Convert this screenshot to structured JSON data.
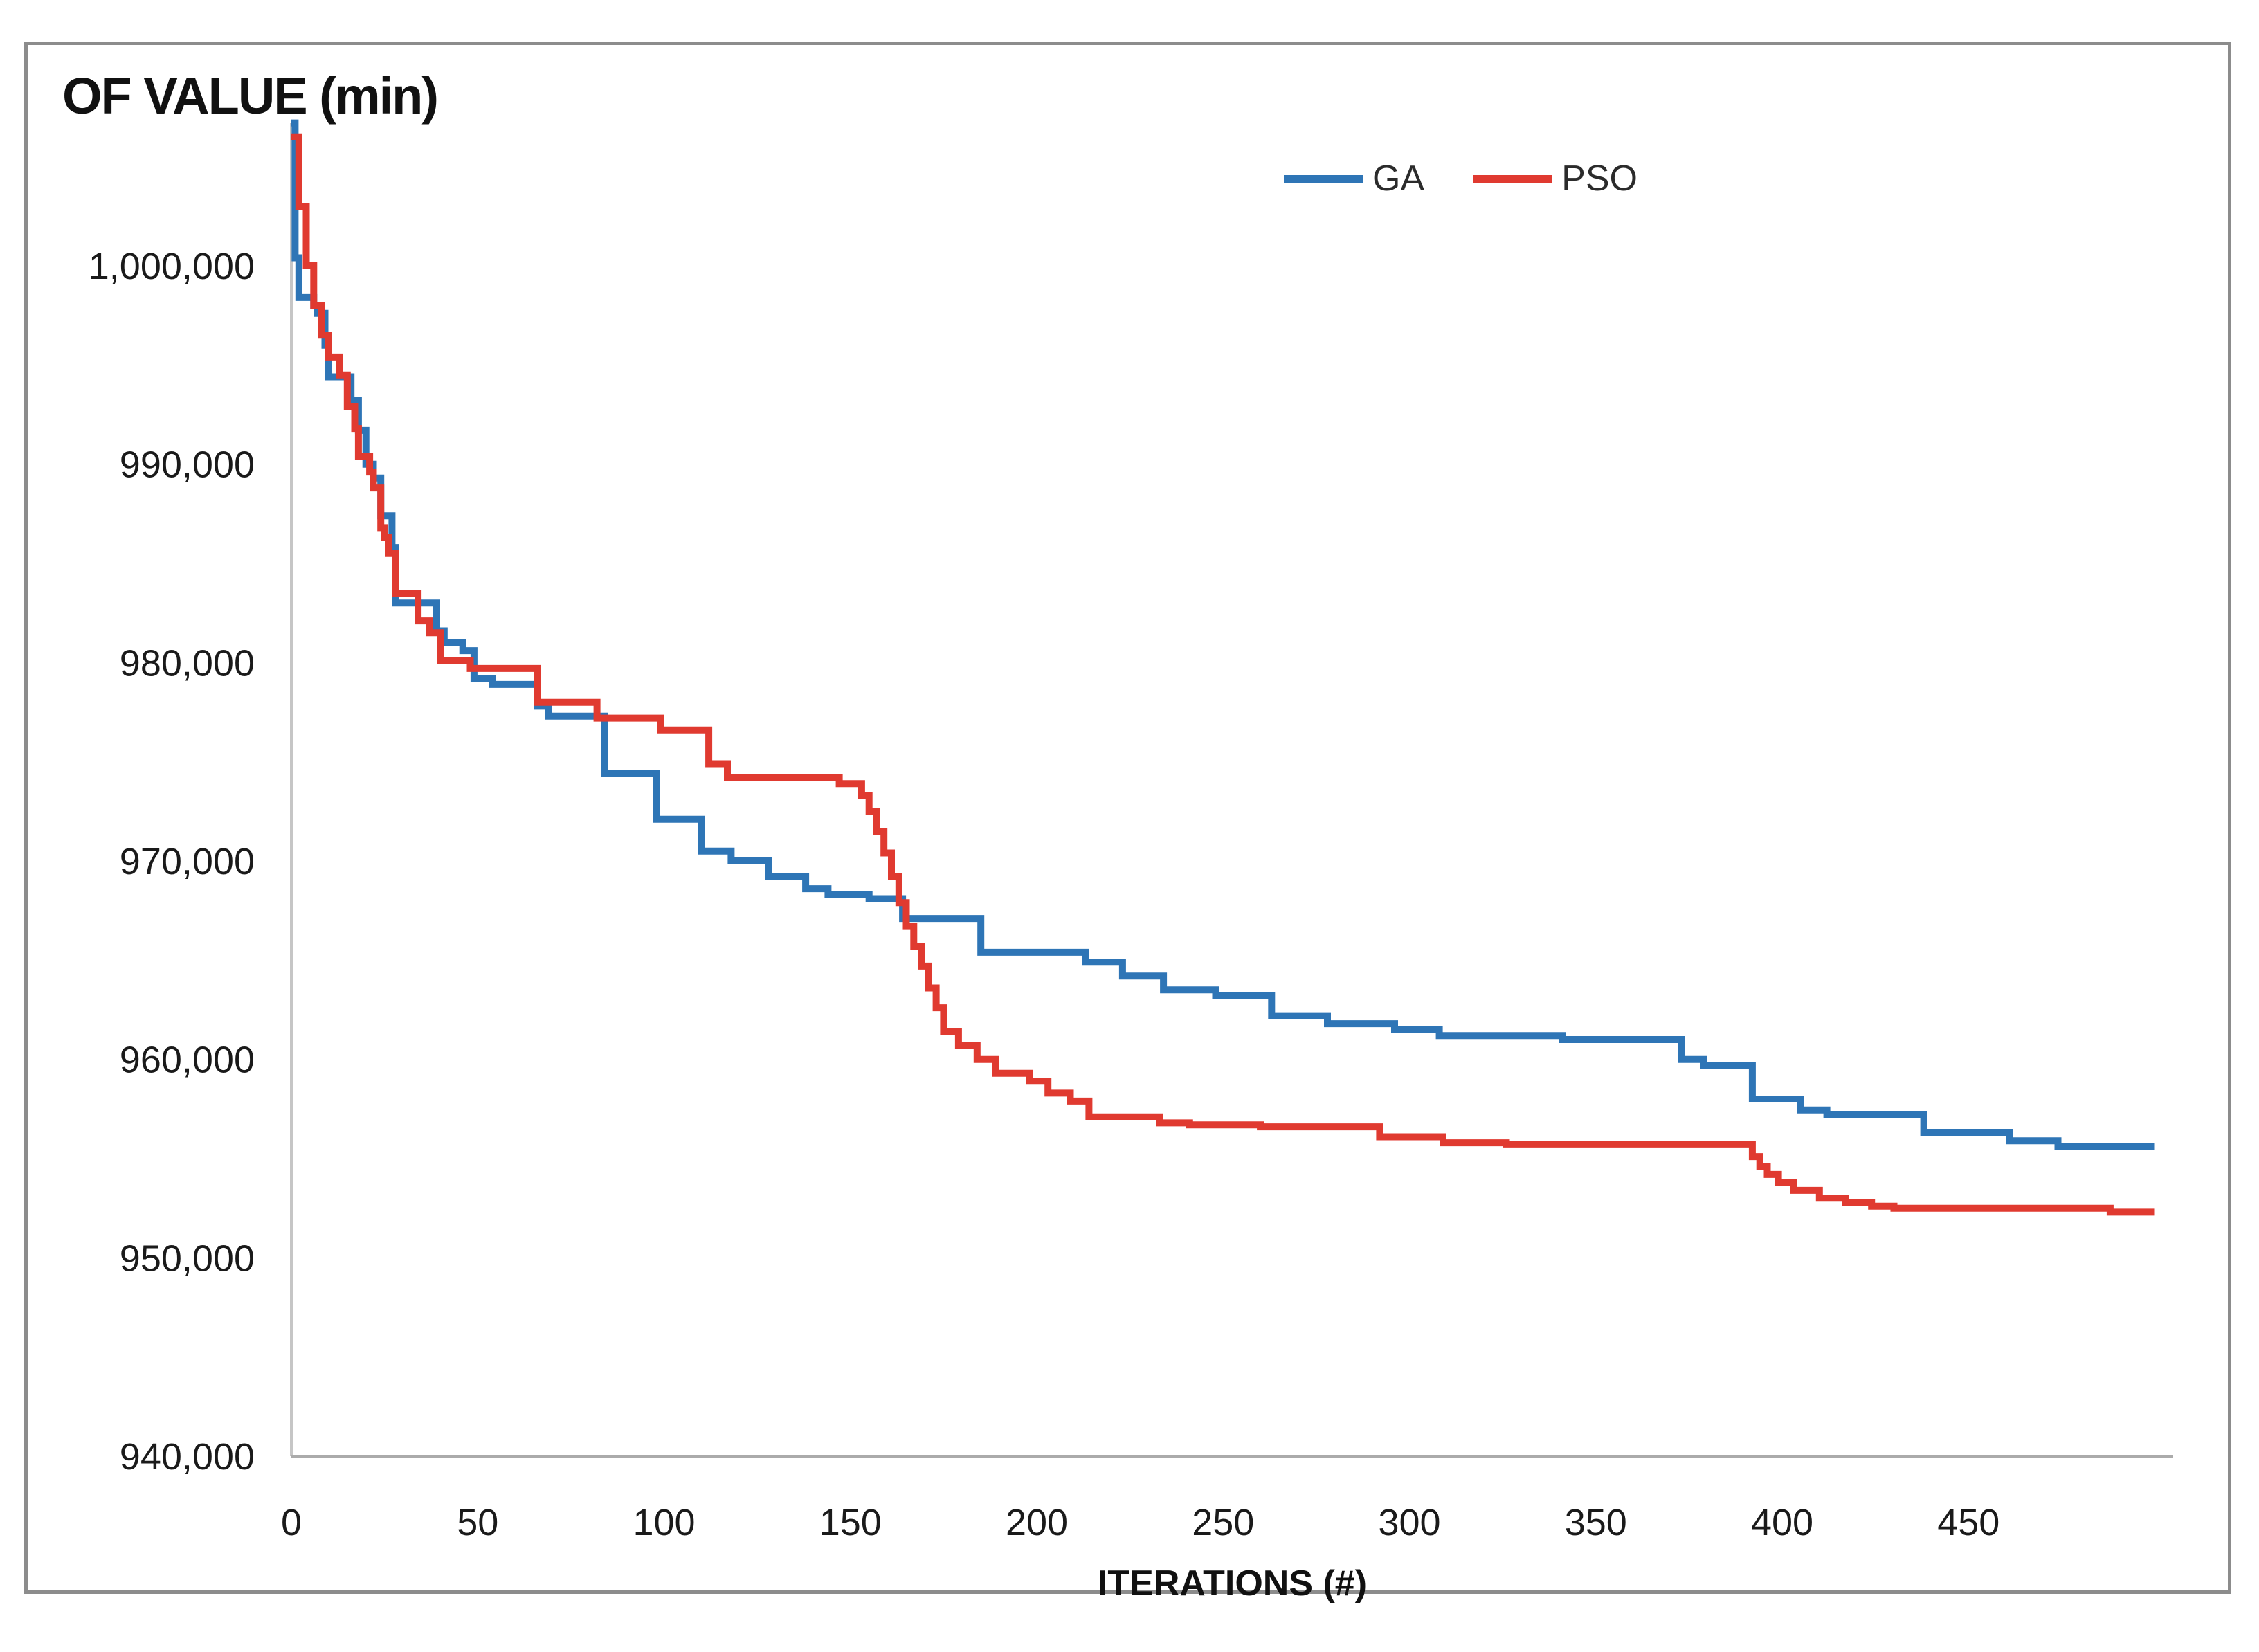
{
  "figure": {
    "title": "OF VALUE (min)",
    "xaxis_title": "ITERATIONS (#)",
    "legend": [
      {
        "label": "GA",
        "color": "#2E75B6"
      },
      {
        "label": "PSO",
        "color": "#E03A30"
      }
    ],
    "colors": {
      "ga_blue": "#2E75B6",
      "pso_red": "#E03A30",
      "axis_line": "#ABABAB",
      "yaxis_line": "#C6C6C6",
      "border_gray": "#8C8C8C",
      "text": "#1A1A1A"
    }
  },
  "chart_data": {
    "type": "line",
    "subtype": "step-after",
    "title": "OF VALUE (min)",
    "xlabel": "ITERATIONS (#)",
    "ylabel": "OF VALUE (min)",
    "grid": false,
    "legend_position": "top-center",
    "xlim": [
      0,
      505
    ],
    "ylim": [
      940000,
      1007640
    ],
    "x_ticks": [
      0,
      50,
      100,
      150,
      200,
      250,
      300,
      350,
      400,
      450
    ],
    "y_ticks": [
      1000000,
      990000,
      980000,
      970000,
      960000,
      950000,
      940000
    ],
    "y_tick_labels": [
      "1,000,000",
      "990,000",
      "980,000",
      "970,000",
      "960,000",
      "950,000",
      "940,000"
    ],
    "series": [
      {
        "name": "GA",
        "color": "#2E75B6",
        "points": [
          [
            0,
            1007200
          ],
          [
            1,
            1000400
          ],
          [
            2,
            998400
          ],
          [
            6,
            998000
          ],
          [
            7,
            997600
          ],
          [
            9,
            996000
          ],
          [
            10,
            994400
          ],
          [
            16,
            993200
          ],
          [
            18,
            991700
          ],
          [
            20,
            990000
          ],
          [
            22,
            989300
          ],
          [
            24,
            987400
          ],
          [
            27,
            985800
          ],
          [
            28,
            983000
          ],
          [
            39,
            981600
          ],
          [
            41,
            981000
          ],
          [
            46,
            980600
          ],
          [
            49,
            979200
          ],
          [
            54,
            978900
          ],
          [
            66,
            977800
          ],
          [
            69,
            977300
          ],
          [
            84,
            974400
          ],
          [
            98,
            972100
          ],
          [
            110,
            970500
          ],
          [
            118,
            970000
          ],
          [
            128,
            969200
          ],
          [
            138,
            968600
          ],
          [
            144,
            968300
          ],
          [
            155,
            968100
          ],
          [
            164,
            967100
          ],
          [
            185,
            965400
          ],
          [
            213,
            964900
          ],
          [
            223,
            964200
          ],
          [
            234,
            963500
          ],
          [
            248,
            963200
          ],
          [
            263,
            962200
          ],
          [
            278,
            961800
          ],
          [
            296,
            961500
          ],
          [
            308,
            961200
          ],
          [
            341,
            961000
          ],
          [
            373,
            960000
          ],
          [
            379,
            959700
          ],
          [
            392,
            958000
          ],
          [
            405,
            957450
          ],
          [
            412,
            957200
          ],
          [
            438,
            956300
          ],
          [
            461,
            955900
          ],
          [
            474,
            955600
          ],
          [
            500,
            955600
          ]
        ]
      },
      {
        "name": "PSO",
        "color": "#E03A30",
        "points": [
          [
            0,
            1006500
          ],
          [
            2,
            1003000
          ],
          [
            4,
            1000000
          ],
          [
            6,
            998000
          ],
          [
            8,
            996500
          ],
          [
            10,
            995400
          ],
          [
            13,
            994500
          ],
          [
            15,
            992900
          ],
          [
            17,
            991800
          ],
          [
            18,
            990400
          ],
          [
            21,
            989600
          ],
          [
            22,
            988800
          ],
          [
            24,
            986800
          ],
          [
            25,
            986300
          ],
          [
            26,
            985500
          ],
          [
            28,
            983500
          ],
          [
            34,
            982100
          ],
          [
            37,
            981500
          ],
          [
            40,
            980100
          ],
          [
            48,
            979700
          ],
          [
            66,
            978000
          ],
          [
            82,
            977200
          ],
          [
            99,
            976600
          ],
          [
            112,
            974900
          ],
          [
            117,
            974200
          ],
          [
            147,
            973900
          ],
          [
            153,
            973300
          ],
          [
            155,
            972500
          ],
          [
            157,
            971500
          ],
          [
            159,
            970400
          ],
          [
            161,
            969200
          ],
          [
            163,
            967900
          ],
          [
            165,
            966700
          ],
          [
            167,
            965700
          ],
          [
            169,
            964700
          ],
          [
            171,
            963600
          ],
          [
            173,
            962600
          ],
          [
            175,
            961400
          ],
          [
            179,
            960700
          ],
          [
            184,
            960000
          ],
          [
            189,
            959300
          ],
          [
            198,
            958900
          ],
          [
            203,
            958300
          ],
          [
            209,
            957900
          ],
          [
            214,
            957100
          ],
          [
            233,
            956800
          ],
          [
            241,
            956700
          ],
          [
            260,
            956600
          ],
          [
            292,
            956100
          ],
          [
            309,
            955800
          ],
          [
            326,
            955700
          ],
          [
            392,
            955100
          ],
          [
            394,
            954600
          ],
          [
            396,
            954200
          ],
          [
            399,
            953800
          ],
          [
            403,
            953400
          ],
          [
            410,
            953000
          ],
          [
            417,
            952800
          ],
          [
            424,
            952600
          ],
          [
            430,
            952500
          ],
          [
            488,
            952300
          ],
          [
            500,
            952300
          ]
        ]
      }
    ]
  }
}
